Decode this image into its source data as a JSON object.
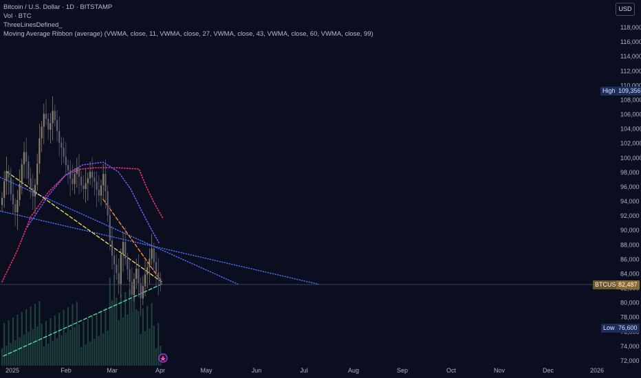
{
  "legend": {
    "title": "Bitcoin / U.S. Dollar · 1D · BITSTAMP",
    "volume": "Vol · BTC",
    "indicator1": "ThreeLinesDefined_",
    "indicator2": "Moving Average Ribbon (average) (VWMA, close, 11, VWMA, close, 27, VWMA, close, 43, VWMA, close, 60, VWMA, close, 99)"
  },
  "currency_button": "USD",
  "markers": {
    "high_label": "High",
    "high_value": "109,356",
    "price_label": "BTCUSD",
    "price_value": "82,487",
    "low_label": "Low",
    "low_value": "76,600"
  },
  "y_ticks": [
    "118,000",
    "116,000",
    "114,000",
    "112,000",
    "110,000",
    "108,000",
    "106,000",
    "104,000",
    "102,000",
    "100,000",
    "98,000",
    "96,000",
    "94,000",
    "92,000",
    "90,000",
    "88,000",
    "86,000",
    "84,000",
    "82,000",
    "80,000",
    "78,000",
    "76,000",
    "74,000",
    "72,000"
  ],
  "x_ticks": [
    "2025",
    "Feb",
    "Mar",
    "Apr",
    "May",
    "Jun",
    "Jul",
    "Aug",
    "Sep",
    "Oct",
    "Nov",
    "Dec",
    "2026"
  ],
  "colors": {
    "background": "#0b0e1f",
    "bull": "#8a7f6a",
    "bear": "#5d5f6e",
    "volume": "#2e6b55",
    "ribbon_red": "#ff2d6e",
    "ribbon_purple": "#7b56ff",
    "trend_blue": "#4b73ff",
    "trend_yellow": "#e9d85a",
    "trend_orange": "#ff8c3a",
    "trend_green": "#4fe0a0"
  }
}
